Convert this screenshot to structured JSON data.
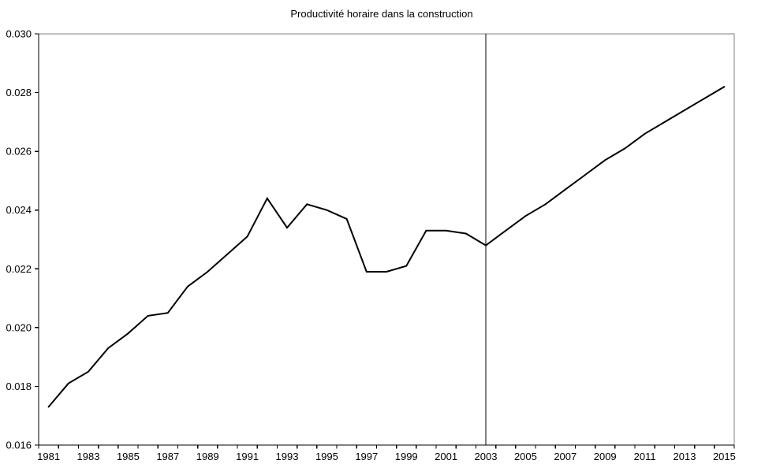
{
  "chart_data": {
    "type": "line",
    "title": "Productivité horaire dans la construction",
    "x": [
      1981,
      1982,
      1983,
      1984,
      1985,
      1986,
      1987,
      1988,
      1989,
      1990,
      1991,
      1992,
      1993,
      1994,
      1995,
      1996,
      1997,
      1998,
      1999,
      2000,
      2001,
      2002,
      2003,
      2004,
      2005,
      2006,
      2007,
      2008,
      2009,
      2010,
      2011,
      2012,
      2013,
      2014,
      2015
    ],
    "series": [
      {
        "name": "Productivité horaire",
        "color": "#000000",
        "values": [
          0.0173,
          0.0181,
          0.0185,
          0.0193,
          0.0198,
          0.0204,
          0.0205,
          0.0214,
          0.0219,
          0.0225,
          0.0231,
          0.0244,
          0.0234,
          0.0242,
          0.024,
          0.0237,
          0.0219,
          0.0219,
          0.0221,
          0.0233,
          0.0233,
          0.0232,
          0.0228,
          0.0233,
          0.0238,
          0.0242,
          0.0247,
          0.0252,
          0.0257,
          0.0261,
          0.0266,
          0.027,
          0.0274,
          0.0278,
          0.0282
        ]
      }
    ],
    "xlabel": "",
    "ylabel": "",
    "ylim": [
      0.016,
      0.03
    ],
    "ytick_step": 0.002,
    "y_tick_labels": [
      "0.016",
      "0.018",
      "0.020",
      "0.022",
      "0.024",
      "0.026",
      "0.028",
      "0.030"
    ],
    "x_tick_labels": [
      "1981",
      "1983",
      "1985",
      "1987",
      "1989",
      "1991",
      "1993",
      "1995",
      "1997",
      "1999",
      "2001",
      "2003",
      "2005",
      "2007",
      "2009",
      "2011",
      "2013",
      "2015"
    ],
    "annotations": [
      {
        "type": "vline",
        "x": 2003
      }
    ],
    "grid": false,
    "legend_position": "none",
    "colors": {
      "axis": "#000000",
      "plot_frame": "#808080",
      "vline": "#000000",
      "background": "#ffffff"
    }
  }
}
